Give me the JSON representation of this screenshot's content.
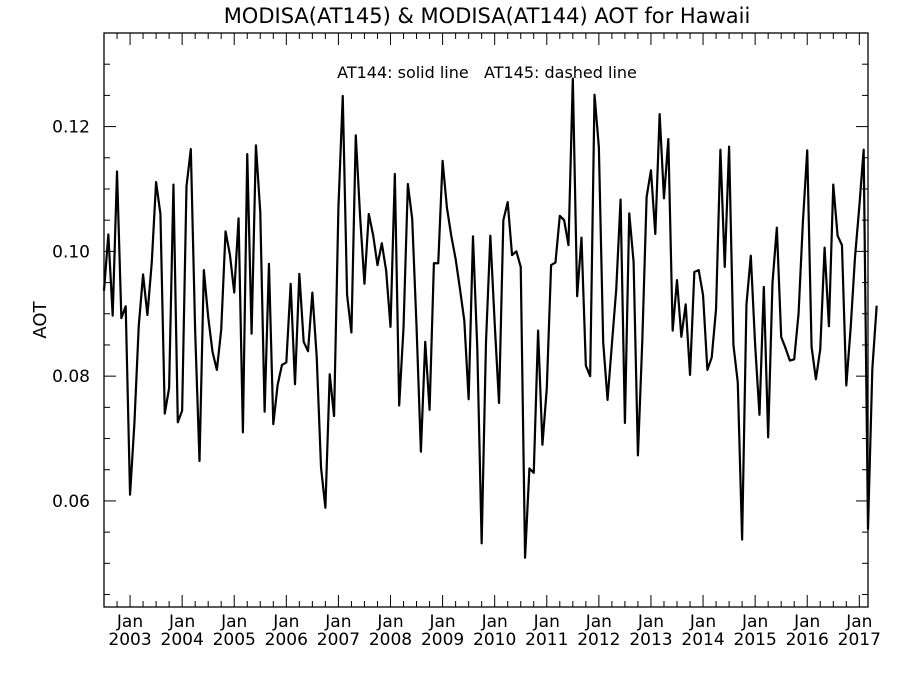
{
  "chart_data": {
    "type": "line",
    "title": "MODISA(AT145) & MODISA(AT144)  AOT for Hawaii",
    "xlabel": "",
    "ylabel": "AOT",
    "annotation": "AT144: solid line   AT145: dashed line",
    "ylim": [
      0.043,
      0.135
    ],
    "y_ticks": [
      "0.06",
      "0.08",
      "0.10",
      "0.12"
    ],
    "x_tick_month": "Jan",
    "x_tick_years": [
      "2003",
      "2004",
      "2005",
      "2006",
      "2007",
      "2008",
      "2009",
      "2010",
      "2011",
      "2012",
      "2013",
      "2014",
      "2015",
      "2016",
      "2017"
    ],
    "grid": false,
    "series": [
      {
        "name": "AT144",
        "style": "solid",
        "color": "#000000",
        "x_start": "2002-07",
        "x_end": "2017-03",
        "values": [
          0.0937,
          0.1027,
          0.0897,
          0.1128,
          0.0893,
          0.0912,
          0.061,
          0.0724,
          0.088,
          0.0963,
          0.0898,
          0.0982,
          0.1111,
          0.106,
          0.074,
          0.0781,
          0.1107,
          0.0726,
          0.0745,
          0.1104,
          0.1164,
          0.0872,
          0.0664,
          0.097,
          0.0895,
          0.0839,
          0.081,
          0.0874,
          0.1032,
          0.0995,
          0.0934,
          0.1053,
          0.071,
          0.1156,
          0.0868,
          0.117,
          0.1063,
          0.0743,
          0.098,
          0.0723,
          0.0786,
          0.0818,
          0.0822,
          0.0948,
          0.0787,
          0.0964,
          0.0855,
          0.084,
          0.0934,
          0.0831,
          0.0653,
          0.0589,
          0.0803,
          0.0736,
          0.107,
          0.1249,
          0.093,
          0.087,
          0.1186,
          0.1056,
          0.0948,
          0.106,
          0.1026,
          0.0978,
          0.1013,
          0.0969,
          0.0879,
          0.1124,
          0.0753,
          0.0878,
          0.1108,
          0.1052,
          0.0879,
          0.0679,
          0.0855,
          0.0746,
          0.0981,
          0.0981,
          0.1145,
          0.107,
          0.1025,
          0.0988,
          0.094,
          0.0889,
          0.0763,
          0.1024,
          0.0843,
          0.0532,
          0.0855,
          0.1025,
          0.0885,
          0.0757,
          0.105,
          0.1079,
          0.0994,
          0.1,
          0.0975,
          0.0509,
          0.0652,
          0.0645,
          0.0873,
          0.069,
          0.078,
          0.0978,
          0.0982,
          0.1057,
          0.105,
          0.101,
          0.1277,
          0.0928,
          0.1022,
          0.0817,
          0.08,
          0.1251,
          0.1167,
          0.0854,
          0.0762,
          0.0851,
          0.0939,
          0.1083,
          0.0725,
          0.1061,
          0.0983,
          0.0673,
          0.0855,
          0.1087,
          0.113,
          0.1028,
          0.122,
          0.1085,
          0.118,
          0.0873,
          0.0954,
          0.0863,
          0.0915,
          0.0802,
          0.0967,
          0.097,
          0.093,
          0.081,
          0.083,
          0.0908,
          0.1163,
          0.0975,
          0.1168,
          0.085,
          0.079,
          0.0538,
          0.0915,
          0.0993,
          0.085,
          0.0738,
          0.0943,
          0.0702,
          0.095,
          0.1038,
          0.0863,
          0.0845,
          0.0825,
          0.0827,
          0.09,
          0.1047,
          0.1162,
          0.0847,
          0.0795,
          0.0843,
          0.1006,
          0.088,
          0.1107,
          0.1025,
          0.101,
          0.0785,
          0.0877,
          0.099,
          0.1072,
          0.1163,
          0.0555,
          0.0812,
          0.0913
        ]
      }
    ]
  }
}
